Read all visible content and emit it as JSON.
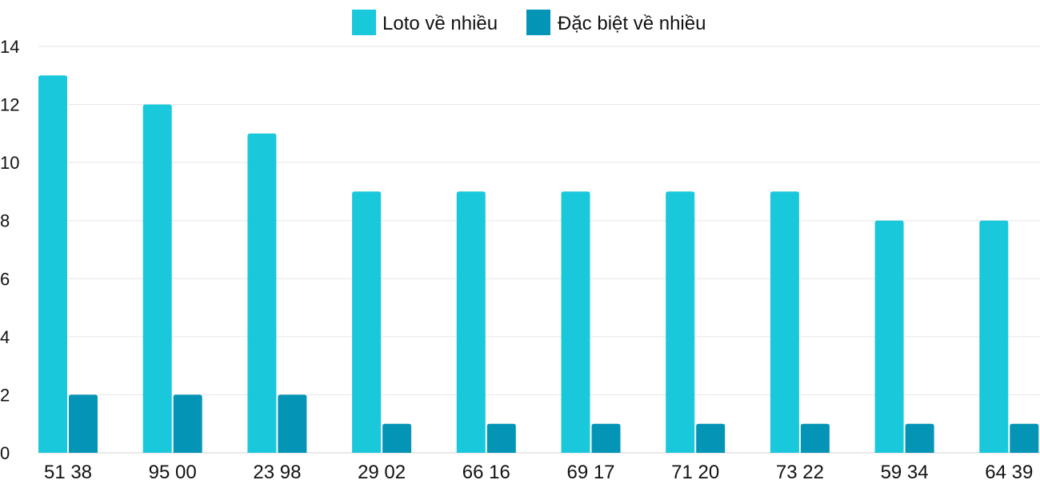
{
  "chart_data": {
    "type": "bar",
    "categories": [
      "51 38",
      "95 00",
      "23 98",
      "29 02",
      "66 16",
      "69 17",
      "71 20",
      "73 22",
      "59 34",
      "64 39"
    ],
    "series": [
      {
        "name": "Loto về nhiều",
        "color": "#1ac8db",
        "values": [
          13,
          12,
          11,
          9,
          9,
          9,
          9,
          9,
          8,
          8
        ]
      },
      {
        "name": "Đặc biệt về nhiều",
        "color": "#0494b6",
        "values": [
          2,
          2,
          2,
          1,
          1,
          1,
          1,
          1,
          1,
          1
        ]
      }
    ],
    "ylim": [
      0,
      14
    ],
    "yticks": [
      0,
      2,
      4,
      6,
      8,
      10,
      12,
      14
    ],
    "grid": true,
    "legend_position": "top-center"
  }
}
